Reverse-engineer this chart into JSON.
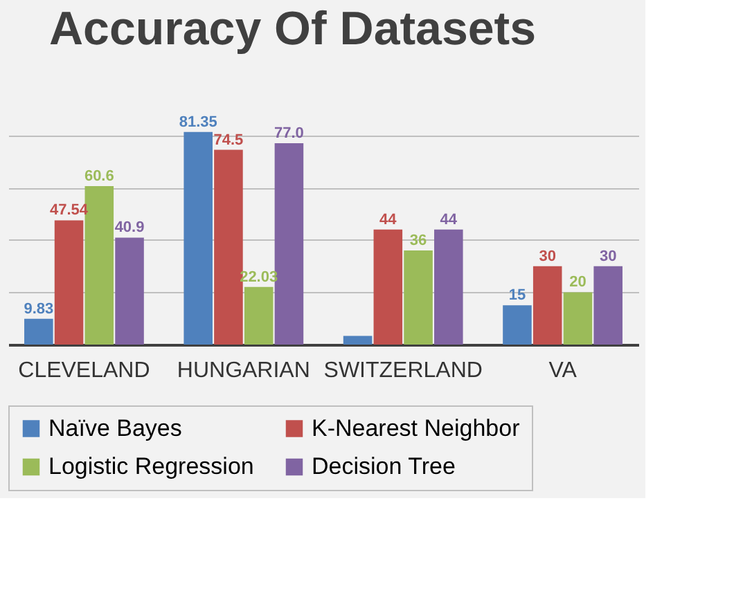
{
  "chart_data": {
    "type": "bar",
    "title": "Accuracy Of Datasets",
    "categories": [
      "CLEVELAND",
      "HUNGARIAN",
      "SWITZERLAND",
      "VA"
    ],
    "series": [
      {
        "name": "Naïve Bayes",
        "color": "#4f81bd",
        "values": [
          9.83,
          81.35,
          3.3,
          15
        ],
        "value_labels": [
          "9.83",
          "81.35",
          null,
          "15"
        ]
      },
      {
        "name": "K-Nearest Neighbor",
        "color": "#c0504d",
        "values": [
          47.54,
          74.5,
          44,
          30
        ],
        "value_labels": [
          "47.54",
          "74.5",
          "44",
          "30"
        ]
      },
      {
        "name": "Logistic Regression",
        "color": "#9bbb59",
        "values": [
          60.6,
          22.03,
          36,
          20
        ],
        "value_labels": [
          "60.6",
          "22.03",
          "36",
          "20"
        ]
      },
      {
        "name": "Decision Tree",
        "color": "#8064a2",
        "values": [
          40.9,
          77.0,
          44,
          30
        ],
        "value_labels": [
          "40.9",
          "77.0",
          "44",
          "30"
        ]
      }
    ],
    "yticks": [
      {
        "value": 0,
        "label": null
      },
      {
        "value": 20,
        "label": null
      },
      {
        "value": 40,
        "label": null
      },
      {
        "value": 60,
        "label": null
      },
      {
        "value": 80,
        "label": null
      }
    ],
    "grid": "y",
    "tick_labels": "x",
    "legend": "bottom"
  }
}
